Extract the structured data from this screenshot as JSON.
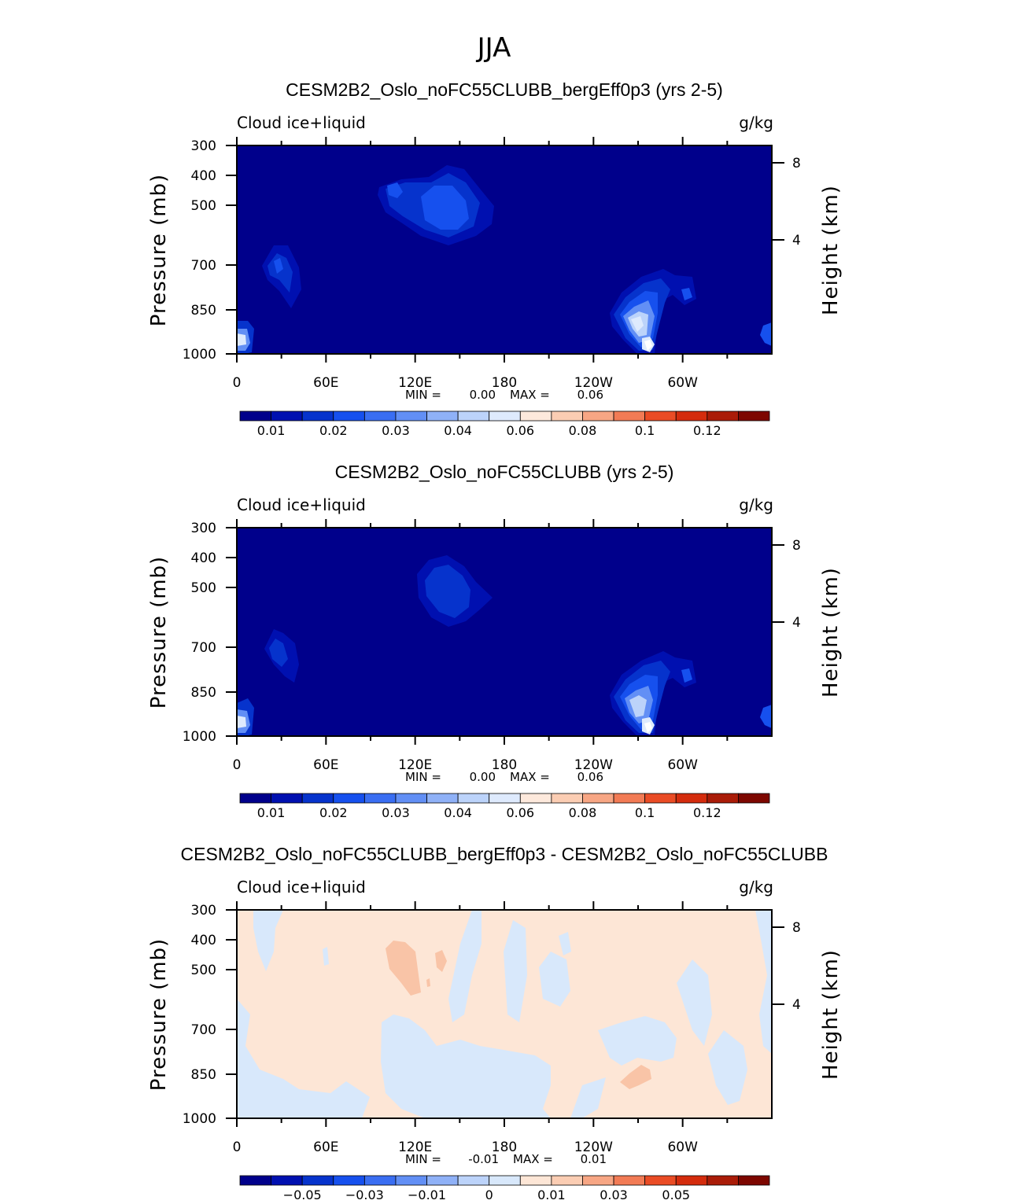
{
  "main_title": "JJA",
  "colors": {
    "cb_abs": [
      "#00008b",
      "#0010b0",
      "#0633cc",
      "#1650ee",
      "#3a6ef2",
      "#628ff5",
      "#8fb1f7",
      "#bcd3fa",
      "#deeafd",
      "#fde9dc",
      "#fbcdb3",
      "#f7a684",
      "#f27b55",
      "#ea4c25",
      "#d42c0d",
      "#aa1c08",
      "#7d0700"
    ],
    "cb_diff": [
      "#00008b",
      "#0010b0",
      "#0633cc",
      "#1650ee",
      "#3a6ef2",
      "#628ff5",
      "#8fb1f7",
      "#bcd3fa",
      "#d8e8fb",
      "#fde6d6",
      "#fbcdb3",
      "#f7a684",
      "#f27b55",
      "#ea4c25",
      "#d42c0d",
      "#aa1c08",
      "#7d0700"
    ]
  },
  "chart_data": [
    {
      "type": "heatmap",
      "title": "CESM2B2_Oslo_noFC55CLUBB_bergEff0p3 (yrs 2-5)",
      "left_label": "Cloud ice+liquid",
      "right_label": "g/kg",
      "ylabel": "Pressure (mb)",
      "ylabel_right": "Height (km)",
      "x_tick_labels": [
        "0",
        "60E",
        "120E",
        "180",
        "120W",
        "60W"
      ],
      "y_tick_labels": [
        "300",
        "400",
        "500",
        "700",
        "850",
        "1000"
      ],
      "y_right_tick_labels": [
        "8",
        "4"
      ],
      "ylim": [
        1000,
        300
      ],
      "min_label": "MIN =",
      "min_value": "0.00",
      "max_label": "MAX =",
      "max_value": "0.06",
      "colorbar_labels": [
        "0.01",
        "0.02",
        "0.03",
        "0.04",
        "0.06",
        "0.08",
        "0.1",
        "0.12"
      ],
      "features": [
        {
          "lon": 140,
          "p": 510,
          "level": 3
        },
        {
          "lon": 108,
          "p": 470,
          "level": 2
        },
        {
          "lon": 30,
          "p": 710,
          "level": 2
        },
        {
          "lon": 4,
          "p": 945,
          "level": 4
        },
        {
          "lon": 272,
          "p": 890,
          "level": 6
        },
        {
          "lon": 290,
          "p": 780,
          "level": 2
        },
        {
          "lon": 278,
          "p": 975,
          "level": 8
        },
        {
          "lon": 357,
          "p": 930,
          "level": 2
        }
      ]
    },
    {
      "type": "heatmap",
      "title": "CESM2B2_Oslo_noFC55CLUBB (yrs 2-5)",
      "left_label": "Cloud ice+liquid",
      "right_label": "g/kg",
      "ylabel": "Pressure (mb)",
      "ylabel_right": "Height (km)",
      "x_tick_labels": [
        "0",
        "60E",
        "120E",
        "180",
        "120W",
        "60W"
      ],
      "y_tick_labels": [
        "300",
        "400",
        "500",
        "700",
        "850",
        "1000"
      ],
      "y_right_tick_labels": [
        "8",
        "4"
      ],
      "ylim": [
        1000,
        300
      ],
      "min_label": "MIN =",
      "min_value": "0.00",
      "max_label": "MAX =",
      "max_value": "0.06",
      "colorbar_labels": [
        "0.01",
        "0.02",
        "0.03",
        "0.04",
        "0.06",
        "0.08",
        "0.1",
        "0.12"
      ],
      "features": [
        {
          "lon": 142,
          "p": 510,
          "level": 2
        },
        {
          "lon": 28,
          "p": 710,
          "level": 2
        },
        {
          "lon": 4,
          "p": 945,
          "level": 4
        },
        {
          "lon": 272,
          "p": 890,
          "level": 5
        },
        {
          "lon": 290,
          "p": 780,
          "level": 2
        },
        {
          "lon": 278,
          "p": 975,
          "level": 8
        },
        {
          "lon": 357,
          "p": 930,
          "level": 2
        }
      ]
    },
    {
      "type": "heatmap",
      "title": "CESM2B2_Oslo_noFC55CLUBB_bergEff0p3 - CESM2B2_Oslo_noFC55CLUBB",
      "left_label": "Cloud ice+liquid",
      "right_label": "g/kg",
      "ylabel": "Pressure (mb)",
      "ylabel_right": "Height (km)",
      "x_tick_labels": [
        "0",
        "60E",
        "120E",
        "180",
        "120W",
        "60W"
      ],
      "y_tick_labels": [
        "300",
        "400",
        "500",
        "700",
        "850",
        "1000"
      ],
      "y_right_tick_labels": [
        "8",
        "4"
      ],
      "ylim": [
        1000,
        300
      ],
      "min_label": "MIN =",
      "min_value": "-0.01",
      "max_label": "MAX =",
      "max_value": "0.01",
      "colorbar_labels": [
        "-0.05",
        "-0.03",
        "-0.01",
        "0",
        "0.01",
        "0.03",
        "0.05"
      ],
      "features": [
        {
          "lon": 110,
          "p": 460,
          "level": 10
        },
        {
          "lon": 136,
          "p": 470,
          "level": 10
        },
        {
          "lon": 267,
          "p": 875,
          "level": 10
        }
      ]
    }
  ]
}
